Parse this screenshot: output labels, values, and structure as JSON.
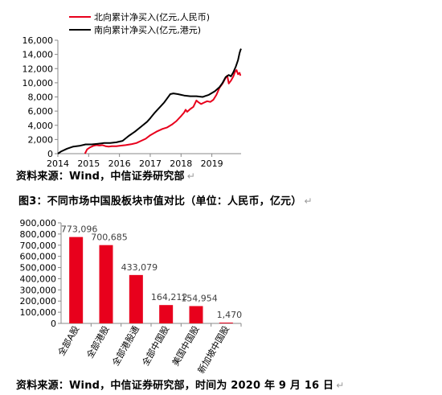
{
  "chart_data": [
    {
      "type": "line",
      "title": "",
      "xlabel": "",
      "ylabel": "",
      "x_ticks": [
        "2014",
        "2015",
        "2016",
        "2017",
        "2018",
        "2019"
      ],
      "x_range": [
        2014.0,
        2019.95
      ],
      "y_ticks": [
        "0",
        "2,000",
        "4,000",
        "6,000",
        "8,000",
        "10,000",
        "12,000",
        "14,000",
        "16,000"
      ],
      "ylim": [
        0,
        16000
      ],
      "grid": false,
      "legend_position": "top-left",
      "series": [
        {
          "name": "北向累计净买入(亿元,人民币)",
          "color": "#e8001c",
          "points": [
            [
              2014.88,
              0
            ],
            [
              2014.95,
              600
            ],
            [
              2015.05,
              900
            ],
            [
              2015.15,
              1100
            ],
            [
              2015.25,
              1200
            ],
            [
              2015.35,
              1150
            ],
            [
              2015.45,
              1200
            ],
            [
              2015.55,
              1050
            ],
            [
              2015.65,
              1000
            ],
            [
              2015.75,
              1050
            ],
            [
              2015.9,
              1050
            ],
            [
              2016.0,
              1100
            ],
            [
              2016.2,
              1200
            ],
            [
              2016.4,
              1350
            ],
            [
              2016.55,
              1500
            ],
            [
              2016.7,
              1800
            ],
            [
              2016.85,
              2100
            ],
            [
              2017.0,
              2600
            ],
            [
              2017.2,
              3100
            ],
            [
              2017.4,
              3500
            ],
            [
              2017.55,
              3700
            ],
            [
              2017.7,
              4100
            ],
            [
              2017.85,
              4600
            ],
            [
              2018.0,
              5300
            ],
            [
              2018.1,
              5800
            ],
            [
              2018.15,
              6200
            ],
            [
              2018.2,
              5900
            ],
            [
              2018.3,
              6300
            ],
            [
              2018.4,
              6600
            ],
            [
              2018.5,
              7500
            ],
            [
              2018.55,
              7300
            ],
            [
              2018.65,
              7000
            ],
            [
              2018.75,
              7200
            ],
            [
              2018.85,
              7400
            ],
            [
              2018.95,
              7300
            ],
            [
              2019.05,
              7600
            ],
            [
              2019.15,
              8300
            ],
            [
              2019.25,
              9300
            ],
            [
              2019.35,
              9900
            ],
            [
              2019.45,
              10700
            ],
            [
              2019.5,
              11000
            ],
            [
              2019.55,
              9900
            ],
            [
              2019.62,
              10300
            ],
            [
              2019.7,
              10900
            ],
            [
              2019.75,
              11500
            ],
            [
              2019.8,
              11800
            ],
            [
              2019.85,
              11200
            ],
            [
              2019.9,
              11400
            ],
            [
              2019.93,
              11000
            ]
          ]
        },
        {
          "name": "南向累计净买入(亿元,港元)",
          "color": "#000000",
          "points": [
            [
              2014.0,
              0
            ],
            [
              2014.1,
              300
            ],
            [
              2014.3,
              700
            ],
            [
              2014.5,
              1000
            ],
            [
              2014.7,
              1100
            ],
            [
              2014.9,
              1300
            ],
            [
              2015.1,
              1300
            ],
            [
              2015.3,
              1400
            ],
            [
              2015.5,
              1500
            ],
            [
              2015.7,
              1500
            ],
            [
              2015.9,
              1600
            ],
            [
              2016.0,
              1700
            ],
            [
              2016.1,
              1800
            ],
            [
              2016.3,
              2500
            ],
            [
              2016.5,
              3100
            ],
            [
              2016.7,
              3800
            ],
            [
              2016.9,
              4500
            ],
            [
              2017.0,
              5000
            ],
            [
              2017.15,
              5800
            ],
            [
              2017.3,
              6500
            ],
            [
              2017.45,
              7200
            ],
            [
              2017.55,
              7800
            ],
            [
              2017.65,
              8400
            ],
            [
              2017.75,
              8500
            ],
            [
              2017.9,
              8400
            ],
            [
              2018.0,
              8300
            ],
            [
              2018.1,
              8200
            ],
            [
              2018.3,
              8100
            ],
            [
              2018.5,
              8100
            ],
            [
              2018.7,
              8000
            ],
            [
              2018.9,
              8300
            ],
            [
              2019.1,
              8800
            ],
            [
              2019.25,
              9400
            ],
            [
              2019.35,
              10000
            ],
            [
              2019.45,
              10800
            ],
            [
              2019.55,
              11100
            ],
            [
              2019.62,
              10900
            ],
            [
              2019.7,
              11500
            ],
            [
              2019.78,
              12300
            ],
            [
              2019.85,
              13200
            ],
            [
              2019.9,
              14200
            ],
            [
              2019.93,
              14600
            ],
            [
              2019.95,
              14800
            ]
          ]
        }
      ]
    },
    {
      "type": "bar",
      "title": "图3：不同市场中国股板块市值对比（单位：人民币，亿元）",
      "xlabel": "",
      "ylabel": "",
      "categories": [
        "全部A股",
        "全部港股",
        "全部港股通",
        "全部中国股",
        "美国中国股",
        "新加坡中国股"
      ],
      "values": [
        773096,
        700685,
        433079,
        164212,
        154954,
        1470
      ],
      "value_labels": [
        "773,096",
        "700,685",
        "433,079",
        "164,212",
        "154,954",
        "1,470"
      ],
      "y_ticks": [
        "0",
        "100,000",
        "200,000",
        "300,000",
        "400,000",
        "500,000",
        "600,000",
        "700,000",
        "800,000",
        "900,000"
      ],
      "ylim": [
        0,
        900000
      ],
      "color": "#e8001c",
      "grid": false
    }
  ],
  "captions": {
    "source1": "资料来源：Wind，中信证券研究部",
    "title2": "图3：不同市场中国股板块市值对比（单位：人民币，亿元）",
    "source2": "资料来源：Wind，中信证券研究部，时间为 2020 年 9 月 16 日"
  },
  "paragraph_mark": "↵"
}
